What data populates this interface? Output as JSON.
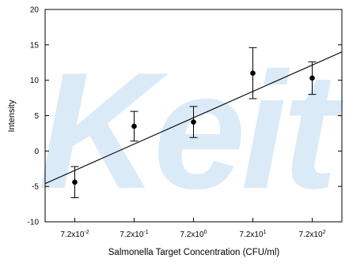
{
  "chart_data": {
    "type": "errorbar-scatter",
    "watermark": "Keit",
    "x_label": "Salmonella Target Concentration (CFU/ml)",
    "y_label": "Intensity",
    "categories": [
      "7.2x10-2",
      "7.2x10-1",
      "7.2x100",
      "7.2x101",
      "7.2x102"
    ],
    "series": [
      {
        "color": "#000000",
        "values": [
          -4.4,
          3.5,
          4.1,
          11.0,
          10.3
        ],
        "errors": [
          2.2,
          2.1,
          2.2,
          3.6,
          2.3
        ]
      }
    ],
    "trendline": {
      "color": "#000000",
      "ends": [
        -4.6,
        14.0
      ]
    },
    "ylim": [
      -10,
      20
    ],
    "yticks": [
      -10,
      -5,
      0,
      5,
      10,
      15,
      20
    ]
  }
}
